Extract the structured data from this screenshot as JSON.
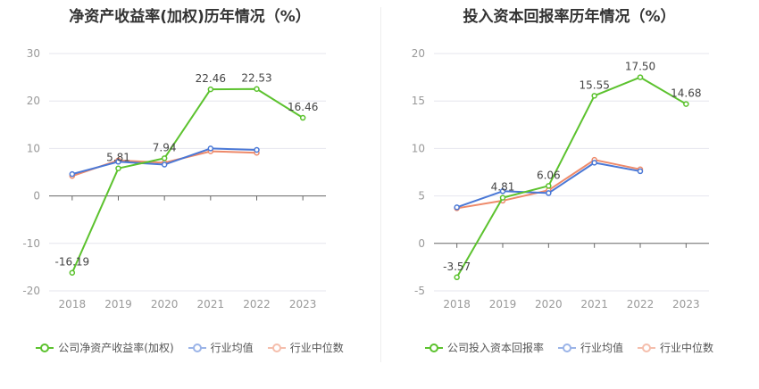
{
  "chart_data": [
    {
      "type": "line",
      "title": "净资产收益率(加权)历年情况（%）",
      "categories": [
        "2018",
        "2019",
        "2020",
        "2021",
        "2022",
        "2023"
      ],
      "ylim": [
        -20,
        30
      ],
      "yticks": [
        -20,
        -10,
        0,
        10,
        20,
        30
      ],
      "series": [
        {
          "name": "公司净资产收益率(加权)",
          "color": "#5cc22e",
          "values": [
            -16.19,
            5.81,
            7.94,
            22.46,
            22.53,
            16.46
          ],
          "labels": [
            "-16.19",
            "5.81",
            "7.94",
            "22.46",
            "22.53",
            "16.46"
          ]
        },
        {
          "name": "行业均值",
          "color": "#4a78d6",
          "values": [
            4.6,
            7.2,
            6.6,
            10.0,
            9.7,
            null
          ]
        },
        {
          "name": "行业中位数",
          "color": "#ee8a6a",
          "values": [
            4.2,
            7.5,
            7.0,
            9.4,
            9.1,
            null
          ]
        }
      ]
    },
    {
      "type": "line",
      "title": "投入资本回报率历年情况（%）",
      "categories": [
        "2018",
        "2019",
        "2020",
        "2021",
        "2022",
        "2023"
      ],
      "ylim": [
        -5,
        20
      ],
      "yticks": [
        -5,
        0,
        5,
        10,
        15,
        20
      ],
      "series": [
        {
          "name": "公司投入资本回报率",
          "color": "#5cc22e",
          "values": [
            -3.57,
            4.81,
            6.06,
            15.55,
            17.5,
            14.68
          ],
          "labels": [
            "-3.57",
            "4.81",
            "6.06",
            "15.55",
            "17.50",
            "14.68"
          ]
        },
        {
          "name": "行业均值",
          "color": "#4a78d6",
          "values": [
            3.8,
            5.5,
            5.3,
            8.5,
            7.6,
            null
          ]
        },
        {
          "name": "行业中位数",
          "color": "#ee8a6a",
          "values": [
            3.7,
            4.5,
            5.6,
            8.8,
            7.8,
            null
          ]
        }
      ]
    }
  ]
}
